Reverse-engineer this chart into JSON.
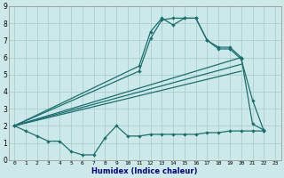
{
  "xlabel": "Humidex (Indice chaleur)",
  "background_color": "#cde8e8",
  "grid_color": "#aacfcf",
  "line_color": "#1a7070",
  "xlim": [
    -0.5,
    23.5
  ],
  "ylim": [
    0,
    9
  ],
  "xticks": [
    0,
    1,
    2,
    3,
    4,
    5,
    6,
    7,
    8,
    9,
    10,
    11,
    12,
    13,
    14,
    15,
    16,
    17,
    18,
    19,
    20,
    21,
    22,
    23
  ],
  "yticks": [
    0,
    1,
    2,
    3,
    4,
    5,
    6,
    7,
    8,
    9
  ],
  "flat_x": [
    0,
    1,
    2,
    3,
    4,
    5,
    6,
    7,
    8,
    9,
    10,
    11,
    12,
    13,
    14,
    15,
    16,
    17,
    18,
    19,
    20,
    21,
    22
  ],
  "flat_y": [
    2.0,
    1.7,
    1.4,
    1.1,
    1.1,
    0.5,
    0.3,
    0.3,
    1.3,
    2.0,
    1.4,
    1.4,
    1.5,
    1.5,
    1.5,
    1.5,
    1.5,
    1.6,
    1.6,
    1.7,
    1.7,
    1.7,
    1.7
  ],
  "peak1_x": [
    0,
    11,
    12,
    13,
    14,
    15,
    16,
    17,
    18,
    19,
    20,
    21,
    22
  ],
  "peak1_y": [
    2.0,
    5.5,
    7.5,
    8.3,
    7.9,
    8.3,
    8.3,
    7.0,
    6.5,
    6.5,
    5.9,
    3.5,
    1.7
  ],
  "peak2_x": [
    0,
    11,
    12,
    13,
    14,
    15,
    16,
    17,
    18,
    19,
    20,
    21,
    22
  ],
  "peak2_y": [
    2.0,
    5.2,
    7.1,
    8.2,
    8.3,
    8.3,
    8.3,
    7.0,
    6.6,
    6.6,
    6.0,
    2.1,
    1.75
  ],
  "trend1_x": [
    0,
    20
  ],
  "trend1_y": [
    2.0,
    6.0
  ],
  "trend2_x": [
    0,
    20
  ],
  "trend2_y": [
    2.0,
    5.6
  ],
  "trend3_x": [
    0,
    20
  ],
  "trend3_y": [
    2.0,
    5.2
  ]
}
